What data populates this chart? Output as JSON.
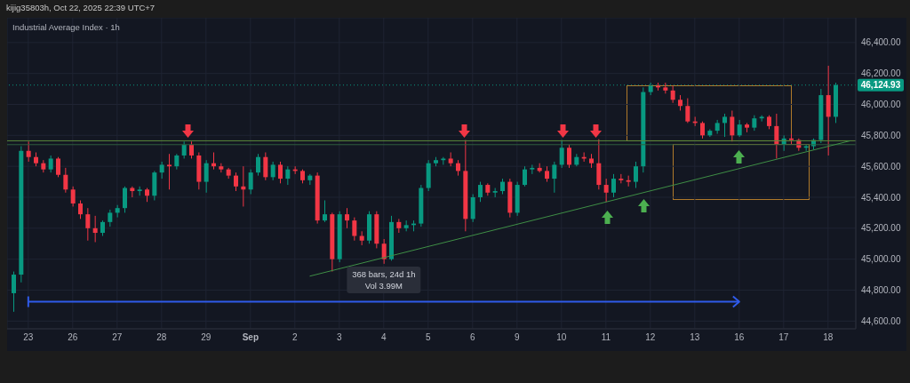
{
  "chart_data": {
    "type": "candlestick",
    "title": "Industrial Average Index · 1h",
    "annotations": [
      "kijig35803h, Oct 22, 2025 22:39 UTC+7",
      "368 bars, 24d 1h",
      "Vol 3.99M"
    ],
    "categories": [
      null,
      null,
      "23",
      null,
      null,
      null,
      null,
      null,
      "26",
      null,
      null,
      null,
      null,
      null,
      "27",
      null,
      null,
      null,
      null,
      null,
      "28",
      null,
      null,
      null,
      null,
      null,
      "29",
      null,
      null,
      null,
      null,
      null,
      "Sep",
      null,
      null,
      null,
      null,
      null,
      "2",
      null,
      null,
      null,
      null,
      null,
      "3",
      null,
      null,
      null,
      null,
      null,
      "4",
      null,
      null,
      null,
      null,
      null,
      "5",
      null,
      null,
      null,
      null,
      null,
      "6",
      null,
      null,
      null,
      null,
      null,
      "9",
      null,
      null,
      null,
      null,
      null,
      "10",
      null,
      null,
      null,
      null,
      null,
      "11",
      null,
      null,
      null,
      null,
      null,
      "12",
      null,
      null,
      null,
      null,
      null,
      "13",
      null,
      null,
      null,
      null,
      null,
      "16",
      null,
      null,
      null,
      null,
      null,
      "17",
      null,
      null,
      null,
      null,
      null,
      "18",
      null,
      null,
      null
    ],
    "ohlc": [
      [
        44780,
        44920,
        44660,
        44900
      ],
      [
        44900,
        45730,
        44850,
        45700
      ],
      [
        45700,
        45760,
        45630,
        45660
      ],
      [
        45660,
        45690,
        45600,
        45620
      ],
      [
        45620,
        45640,
        45560,
        45580
      ],
      [
        45580,
        45670,
        45560,
        45650
      ],
      [
        45650,
        45660,
        45530,
        45545
      ],
      [
        45545,
        45590,
        45430,
        45450
      ],
      [
        45450,
        45470,
        45340,
        45360
      ],
      [
        45360,
        45380,
        45260,
        45290
      ],
      [
        45290,
        45330,
        45120,
        45200
      ],
      [
        45200,
        45280,
        45110,
        45170
      ],
      [
        45170,
        45250,
        45150,
        45240
      ],
      [
        45240,
        45320,
        45210,
        45300
      ],
      [
        45300,
        45350,
        45270,
        45330
      ],
      [
        45330,
        45470,
        45300,
        45460
      ],
      [
        45460,
        45470,
        45400,
        45440
      ],
      [
        45440,
        45470,
        45410,
        45450
      ],
      [
        45450,
        45460,
        45370,
        45410
      ],
      [
        45410,
        45570,
        45380,
        45560
      ],
      [
        45560,
        45630,
        45520,
        45610
      ],
      [
        45610,
        45680,
        45450,
        45600
      ],
      [
        45600,
        45680,
        45580,
        45670
      ],
      [
        45670,
        45760,
        45650,
        45740
      ],
      [
        45740,
        45760,
        45650,
        45670
      ],
      [
        45670,
        45690,
        45450,
        45500
      ],
      [
        45500,
        45640,
        45430,
        45620
      ],
      [
        45620,
        45690,
        45580,
        45600
      ],
      [
        45600,
        45620,
        45560,
        45580
      ],
      [
        45580,
        45590,
        45520,
        45540
      ],
      [
        45540,
        45560,
        45440,
        45470
      ],
      [
        45470,
        45600,
        45340,
        45450
      ],
      [
        45450,
        45580,
        45420,
        45560
      ],
      [
        45560,
        45680,
        45540,
        45660
      ],
      [
        45660,
        45690,
        45510,
        45530
      ],
      [
        45530,
        45630,
        45510,
        45610
      ],
      [
        45610,
        45630,
        45490,
        45520
      ],
      [
        45520,
        45600,
        45480,
        45580
      ],
      [
        45580,
        45600,
        45550,
        45570
      ],
      [
        45570,
        45580,
        45490,
        45510
      ],
      [
        45510,
        45550,
        45480,
        45540
      ],
      [
        45540,
        45560,
        45230,
        45250
      ],
      [
        45250,
        45380,
        45240,
        45290
      ],
      [
        45290,
        45300,
        44920,
        45000
      ],
      [
        45000,
        45310,
        44980,
        45290
      ],
      [
        45290,
        45330,
        45200,
        45250
      ],
      [
        45250,
        45270,
        45120,
        45150
      ],
      [
        45150,
        45180,
        45090,
        45120
      ],
      [
        45120,
        45310,
        45100,
        45290
      ],
      [
        45290,
        45310,
        45070,
        45100
      ],
      [
        45100,
        45130,
        44970,
        45000
      ],
      [
        45000,
        45280,
        44990,
        45240
      ],
      [
        45240,
        45260,
        45170,
        45200
      ],
      [
        45200,
        45250,
        45180,
        45220
      ],
      [
        45220,
        45250,
        45180,
        45230
      ],
      [
        45230,
        45480,
        45210,
        45460
      ],
      [
        45460,
        45640,
        45440,
        45620
      ],
      [
        45620,
        45660,
        45600,
        45640
      ],
      [
        45640,
        45660,
        45610,
        45650
      ],
      [
        45650,
        45690,
        45600,
        45620
      ],
      [
        45620,
        45640,
        45540,
        45570
      ],
      [
        45570,
        45770,
        45180,
        45260
      ],
      [
        45260,
        45420,
        45240,
        45400
      ],
      [
        45400,
        45500,
        45370,
        45480
      ],
      [
        45480,
        45490,
        45410,
        45430
      ],
      [
        45430,
        45460,
        45400,
        45440
      ],
      [
        45440,
        45520,
        45420,
        45500
      ],
      [
        45500,
        45520,
        45270,
        45300
      ],
      [
        45300,
        45500,
        45280,
        45480
      ],
      [
        45480,
        45600,
        45470,
        45580
      ],
      [
        45580,
        45610,
        45550,
        45590
      ],
      [
        45590,
        45620,
        45560,
        45570
      ],
      [
        45570,
        45600,
        45500,
        45520
      ],
      [
        45520,
        45630,
        45430,
        45610
      ],
      [
        45610,
        45770,
        45590,
        45720
      ],
      [
        45720,
        45740,
        45590,
        45610
      ],
      [
        45610,
        45680,
        45600,
        45660
      ],
      [
        45660,
        45690,
        45630,
        45650
      ],
      [
        45650,
        45680,
        45590,
        45620
      ],
      [
        45620,
        45775,
        45450,
        45480
      ],
      [
        45480,
        45520,
        45370,
        45430
      ],
      [
        45430,
        45550,
        45400,
        45520
      ],
      [
        45520,
        45550,
        45490,
        45510
      ],
      [
        45510,
        45540,
        45470,
        45500
      ],
      [
        45500,
        45630,
        45460,
        45600
      ],
      [
        45600,
        46110,
        45560,
        46080
      ],
      [
        46080,
        46140,
        46060,
        46120
      ],
      [
        46120,
        46140,
        46090,
        46110
      ],
      [
        46110,
        46140,
        46070,
        46090
      ],
      [
        46090,
        46120,
        46010,
        46030
      ],
      [
        46030,
        46060,
        45960,
        45990
      ],
      [
        45990,
        46040,
        45880,
        45890
      ],
      [
        45890,
        45920,
        45860,
        45880
      ],
      [
        45880,
        45890,
        45780,
        45800
      ],
      [
        45800,
        45840,
        45790,
        45830
      ],
      [
        45830,
        45900,
        45810,
        45880
      ],
      [
        45880,
        45940,
        45790,
        45920
      ],
      [
        45920,
        45960,
        45760,
        45800
      ],
      [
        45800,
        45900,
        45790,
        45870
      ],
      [
        45870,
        45880,
        45820,
        45850
      ],
      [
        45850,
        45930,
        45830,
        45910
      ],
      [
        45910,
        45930,
        45890,
        45920
      ],
      [
        45920,
        45930,
        45840,
        45860
      ],
      [
        45860,
        45940,
        45650,
        45740
      ],
      [
        45740,
        45800,
        45700,
        45780
      ],
      [
        45780,
        45810,
        45740,
        45770
      ],
      [
        45770,
        45780,
        45700,
        45720
      ],
      [
        45720,
        45740,
        45700,
        45730
      ],
      [
        45730,
        45780,
        45710,
        45770
      ],
      [
        45770,
        46100,
        45750,
        46060
      ],
      [
        46060,
        46250,
        45670,
        45920
      ],
      [
        45920,
        46140,
        45880,
        46125
      ],
      null,
      null
    ],
    "colors": [
      "#089981",
      "#089981",
      "#f23645",
      "#f23645",
      "#f23645",
      "#089981",
      "#f23645",
      "#f23645",
      "#f23645",
      "#f23645",
      "#f23645",
      "#f23645",
      "#089981",
      "#089981",
      "#089981",
      "#089981",
      "#f23645",
      "#089981",
      "#f23645",
      "#089981",
      "#089981",
      "#f23645",
      "#089981",
      "#089981",
      "#f23645",
      "#f23645",
      "#089981",
      "#f23645",
      "#f23645",
      "#f23645",
      "#f23645",
      "#f23645",
      "#089981",
      "#089981",
      "#f23645",
      "#089981",
      "#f23645",
      "#089981",
      "#f23645",
      "#f23645",
      "#089981",
      "#f23645",
      "#089981",
      "#f23645",
      "#089981",
      "#f23645",
      "#f23645",
      "#f23645",
      "#089981",
      "#f23645",
      "#f23645",
      "#089981",
      "#f23645",
      "#089981",
      "#089981",
      "#089981",
      "#089981",
      "#089981",
      "#089981",
      "#f23645",
      "#f23645",
      "#f23645",
      "#089981",
      "#089981",
      "#f23645",
      "#089981",
      "#089981",
      "#f23645",
      "#089981",
      "#089981",
      "#089981",
      "#f23645",
      "#f23645",
      "#089981",
      "#089981",
      "#f23645",
      "#089981",
      "#f23645",
      "#f23645",
      "#f23645",
      "#f23645",
      "#089981",
      "#f23645",
      "#f23645",
      "#089981",
      "#089981",
      "#089981",
      "#f23645",
      "#f23645",
      "#f23645",
      "#f23645",
      "#f23645",
      "#f23645",
      "#f23645",
      "#089981",
      "#089981",
      "#089981",
      "#f23645",
      "#089981",
      "#f23645",
      "#089981",
      "#089981",
      "#f23645",
      "#f23645",
      "#089981",
      "#f23645",
      "#f23645",
      "#089981",
      "#089981",
      "#089981",
      "#f23645",
      "#089981",
      null,
      null
    ],
    "series": [
      {
        "type": "line",
        "color": "#2f5bea",
        "values": [
          null,
          null,
          44725,
          null,
          null,
          null,
          null,
          null,
          null,
          null,
          null,
          null,
          null,
          null,
          null,
          null,
          null,
          null,
          null,
          null,
          null,
          null,
          null,
          null,
          null,
          null,
          null,
          null,
          null,
          null,
          null,
          null,
          null,
          null,
          null,
          null,
          null,
          null,
          null,
          null,
          null,
          null,
          null,
          null,
          null,
          null,
          null,
          null,
          null,
          null,
          null,
          null,
          null,
          null,
          null,
          null,
          null,
          null,
          null,
          null,
          null,
          null,
          null,
          null,
          null,
          null,
          null,
          null,
          null,
          null,
          null,
          null,
          null,
          null,
          null,
          null,
          null,
          null,
          null,
          null,
          null,
          null,
          null,
          null,
          null,
          null,
          null,
          null,
          null,
          null,
          null,
          null,
          null,
          null,
          null,
          null,
          null,
          null,
          44725,
          null,
          null,
          null,
          null,
          null,
          null,
          null,
          null,
          null,
          null,
          null,
          null,
          null,
          null,
          null
        ]
      },
      {
        "type": "line",
        "color": "#3f8f46",
        "values": [
          null,
          null,
          null,
          null,
          null,
          null,
          null,
          null,
          null,
          null,
          null,
          null,
          null,
          null,
          null,
          null,
          null,
          null,
          null,
          null,
          null,
          null,
          null,
          null,
          null,
          null,
          null,
          null,
          null,
          null,
          null,
          null,
          null,
          null,
          null,
          null,
          null,
          null,
          null,
          null,
          44890,
          null,
          null,
          null,
          null,
          null,
          null,
          null,
          null,
          null,
          null,
          null,
          null,
          null,
          null,
          null,
          null,
          null,
          null,
          null,
          null,
          null,
          null,
          null,
          null,
          null,
          null,
          null,
          null,
          null,
          null,
          null,
          null,
          null,
          null,
          null,
          null,
          null,
          null,
          null,
          null,
          null,
          null,
          null,
          null,
          null,
          null,
          null,
          null,
          null,
          null,
          null,
          null,
          null,
          null,
          null,
          null,
          null,
          null,
          null,
          null,
          null,
          null,
          null,
          null,
          null,
          null,
          null,
          null,
          null,
          null,
          null,
          null,
          45765
        ]
      }
    ],
    "ref_lines": [
      {
        "axis": "y",
        "value": 45765,
        "color": "#5a8a3a"
      },
      {
        "axis": "y",
        "value": 45740,
        "color": "#2f5e3e"
      },
      {
        "axis": "y",
        "value": 46124.93,
        "label": "46,124.93",
        "color": "#089981",
        "line_style": "dotted"
      }
    ],
    "ylim": [
      44550,
      46560
    ],
    "yticks": [
      {
        "value": 44600,
        "label": "44,600.00"
      },
      {
        "value": 44800,
        "label": "44,800.00"
      },
      {
        "value": 45000,
        "label": "45,000.00"
      },
      {
        "value": 45200,
        "label": "45,200.00"
      },
      {
        "value": 45400,
        "label": "45,400.00"
      },
      {
        "value": 45600,
        "label": "45,600.00"
      },
      {
        "value": 45800,
        "label": "45,800.00"
      },
      {
        "value": 46000,
        "label": "46,000.00"
      },
      {
        "value": 46200,
        "label": "46,200.00"
      },
      {
        "value": 46400,
        "label": "46,400.00"
      }
    ],
    "grid": true
  }
}
